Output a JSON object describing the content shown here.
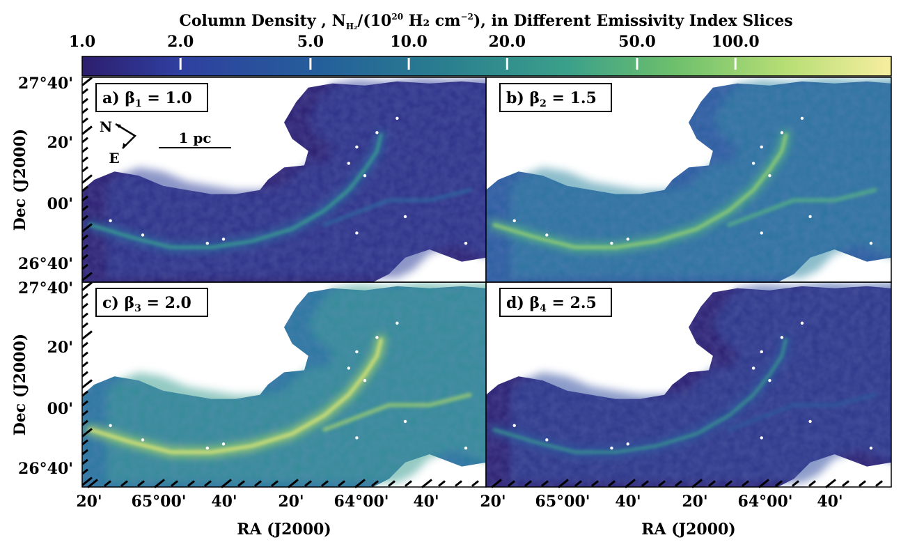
{
  "chart_data": {
    "type": "heatmap",
    "title": "Column Density , N",
    "title_sub": "H₂",
    "title_mid": "/(10",
    "title_exp": "20",
    "title_units": " H₂ cm",
    "title_units_exp": "−2",
    "title_tail": "), in Different Emissivity Index Slices",
    "colorbar": {
      "scale": "log",
      "range": [
        1.0,
        300.0
      ],
      "tick_values": [
        1.0,
        2.0,
        5.0,
        10.0,
        20.0,
        50.0,
        100.0
      ],
      "tick_labels": [
        "1.0",
        "2.0",
        "5.0",
        "10.0",
        "20.0",
        "50.0",
        "100.0"
      ],
      "colors": [
        "#2d1e6e",
        "#2f3fa0",
        "#24609a",
        "#2a7f8f",
        "#3ba08a",
        "#6cbf6c",
        "#b7de75",
        "#f7eea0"
      ]
    },
    "xlabel": "RA (J2000)",
    "ylabel": "Dec (J2000)",
    "x_tick_labels": [
      "20'",
      "65°00'",
      "40'",
      "20'",
      "64°00'",
      "40'"
    ],
    "y_tick_labels": [
      "27°40'",
      "20'",
      "00'",
      "26°40'"
    ],
    "compass": {
      "north": "N",
      "east": "E"
    },
    "scalebar_label": "1 pc",
    "panels": [
      {
        "id": "a",
        "label": "a) β",
        "sub": "1",
        "value_text": " = 1.0",
        "beta": 1.0
      },
      {
        "id": "b",
        "label": "b) β",
        "sub": "2",
        "value_text": " = 1.5",
        "beta": 1.5
      },
      {
        "id": "c",
        "label": "c) β",
        "sub": "3",
        "value_text": " = 2.0",
        "beta": 2.0
      },
      {
        "id": "d",
        "label": "d) β",
        "sub": "4",
        "value_text": " = 2.5",
        "beta": 2.5
      }
    ]
  }
}
